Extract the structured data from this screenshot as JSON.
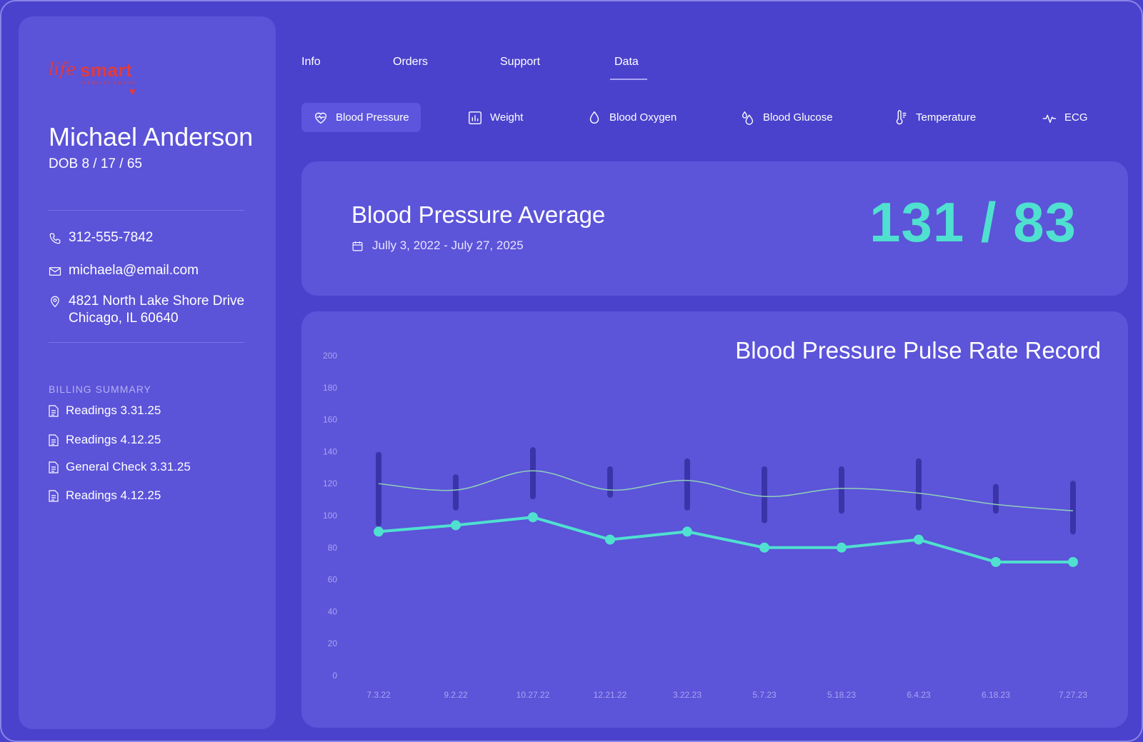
{
  "logo": {
    "life": "life",
    "smart": "smart",
    "sub": "medical center"
  },
  "patient": {
    "name": "Michael Anderson",
    "dob": "DOB 8 / 17 / 65",
    "phone": "312-555-7842",
    "email": "michaela@email.com",
    "address_line1": "4821 North Lake Shore Drive",
    "address_line2": "Chicago, IL 60640"
  },
  "billing": {
    "title": "BILLING SUMMARY",
    "items": [
      "Readings 3.31.25",
      "Readings 4.12.25",
      "General Check 3.31.25",
      "Readings 4.12.25"
    ]
  },
  "tabs": [
    "Info",
    "Orders",
    "Support",
    "Data"
  ],
  "active_tab": "Data",
  "metrics": [
    {
      "label": "Blood Pressure",
      "icon": "heart-icon"
    },
    {
      "label": "Weight",
      "icon": "bar-chart-icon"
    },
    {
      "label": "Blood Oxygen",
      "icon": "drop-icon"
    },
    {
      "label": "Blood Glucose",
      "icon": "drops-icon"
    },
    {
      "label": "Temperature",
      "icon": "thermometer-icon"
    },
    {
      "label": "ECG",
      "icon": "pulse-icon"
    }
  ],
  "average": {
    "title": "Blood Pressure Average",
    "range": "Jully 3, 2022 -  July 27, 2025",
    "value": "131 / 83"
  },
  "colors": {
    "background": "#4a42cc",
    "card": "#5c54d9",
    "accent": "#4fe0cf",
    "range_bar": "#3b34a8",
    "thin_line": "#8fd0b8",
    "logo": "#e23b3b"
  },
  "chart_data": {
    "type": "line",
    "title": "Blood Pressure Pulse Rate Record",
    "categories": [
      "7.3.22",
      "9.2.22",
      "10.27.22",
      "12.21.22",
      "3.22.23",
      "5.7.23",
      "5.18.23",
      "6.4.23",
      "6.18.23",
      "7.27.23"
    ],
    "ylim": [
      0,
      200
    ],
    "yticks": [
      0,
      20,
      40,
      60,
      80,
      100,
      120,
      140,
      160,
      180,
      200
    ],
    "grid": false,
    "ranges": [
      [
        95,
        138
      ],
      [
        105,
        124
      ],
      [
        112,
        141
      ],
      [
        113,
        129
      ],
      [
        105,
        134
      ],
      [
        97,
        129
      ],
      [
        103,
        129
      ],
      [
        105,
        134
      ],
      [
        103,
        118
      ],
      [
        90,
        120
      ]
    ],
    "series": [
      {
        "style": "thin",
        "values": [
          120,
          116,
          128,
          116,
          122,
          112,
          117,
          114,
          107,
          103
        ]
      },
      {
        "style": "thick",
        "values": [
          90,
          94,
          99,
          85,
          90,
          80,
          80,
          85,
          71,
          71
        ]
      }
    ]
  }
}
